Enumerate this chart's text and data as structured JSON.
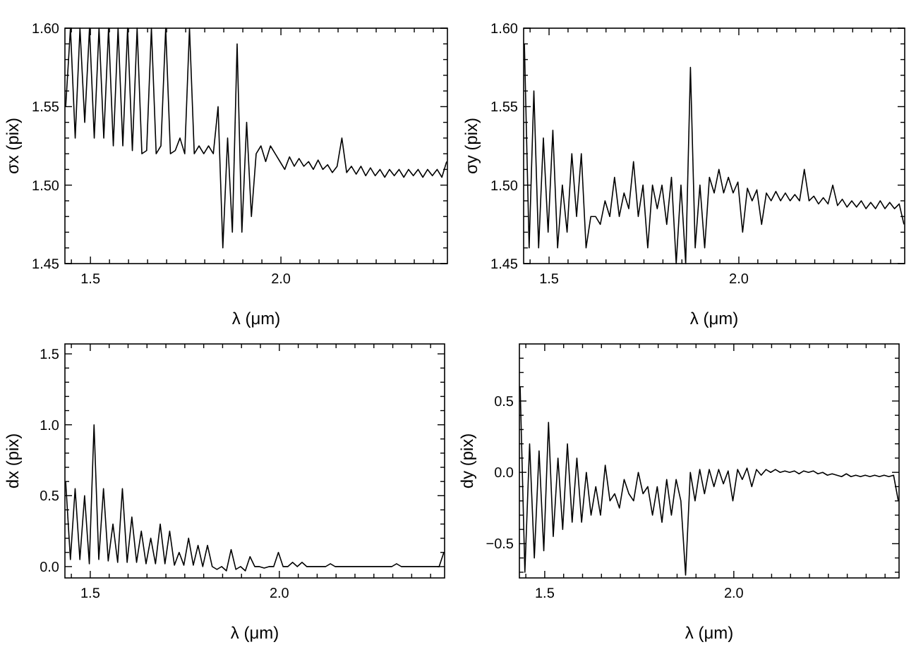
{
  "chart_data": [
    {
      "type": "line",
      "xlabel": "λ (μm)",
      "ylabel": "σx (pix)",
      "xlim": [
        1.433,
        2.437
      ],
      "ylim": [
        1.45,
        1.6
      ],
      "xticks": [
        {
          "value": 1.45,
          "label": null
        },
        {
          "value": 1.5,
          "label": "1.5"
        },
        {
          "value": 1.55,
          "label": null
        },
        {
          "value": 1.6,
          "label": null
        },
        {
          "value": 1.65,
          "label": null
        },
        {
          "value": 1.7,
          "label": null
        },
        {
          "value": 1.75,
          "label": null
        },
        {
          "value": 1.8,
          "label": null
        },
        {
          "value": 1.85,
          "label": null
        },
        {
          "value": 1.9,
          "label": null
        },
        {
          "value": 1.95,
          "label": null
        },
        {
          "value": 2.0,
          "label": "2.0"
        },
        {
          "value": 2.05,
          "label": null
        },
        {
          "value": 2.1,
          "label": null
        },
        {
          "value": 2.15,
          "label": null
        },
        {
          "value": 2.2,
          "label": null
        },
        {
          "value": 2.25,
          "label": null
        },
        {
          "value": 2.3,
          "label": null
        },
        {
          "value": 2.35,
          "label": null
        },
        {
          "value": 2.4,
          "label": null
        }
      ],
      "yticks": [
        {
          "value": 1.45,
          "label": "1.45"
        },
        {
          "value": 1.46,
          "label": null
        },
        {
          "value": 1.47,
          "label": null
        },
        {
          "value": 1.48,
          "label": null
        },
        {
          "value": 1.49,
          "label": null
        },
        {
          "value": 1.5,
          "label": "1.50"
        },
        {
          "value": 1.51,
          "label": null
        },
        {
          "value": 1.52,
          "label": null
        },
        {
          "value": 1.53,
          "label": null
        },
        {
          "value": 1.54,
          "label": null
        },
        {
          "value": 1.55,
          "label": "1.55"
        },
        {
          "value": 1.56,
          "label": null
        },
        {
          "value": 1.57,
          "label": null
        },
        {
          "value": 1.58,
          "label": null
        },
        {
          "value": 1.59,
          "label": null
        },
        {
          "value": 1.6,
          "label": "1.60"
        }
      ],
      "x": [
        1.435,
        1.4475,
        1.46,
        1.4725,
        1.485,
        1.4975,
        1.51,
        1.5225,
        1.535,
        1.5475,
        1.56,
        1.5725,
        1.585,
        1.5975,
        1.61,
        1.6225,
        1.635,
        1.6475,
        1.66,
        1.6725,
        1.685,
        1.6975,
        1.71,
        1.7225,
        1.735,
        1.7475,
        1.76,
        1.7725,
        1.785,
        1.7975,
        1.81,
        1.8225,
        1.835,
        1.8475,
        1.86,
        1.8725,
        1.885,
        1.8975,
        1.91,
        1.9225,
        1.935,
        1.9475,
        1.96,
        1.9725,
        1.985,
        1.9975,
        2.01,
        2.0225,
        2.035,
        2.0475,
        2.06,
        2.0725,
        2.085,
        2.0975,
        2.11,
        2.1225,
        2.135,
        2.1475,
        2.16,
        2.1725,
        2.185,
        2.1975,
        2.21,
        2.2225,
        2.235,
        2.2475,
        2.26,
        2.2725,
        2.285,
        2.2975,
        2.31,
        2.3225,
        2.335,
        2.3475,
        2.36,
        2.3725,
        2.385,
        2.3975,
        2.41,
        2.4225,
        2.435
      ],
      "series": [
        {
          "color": "#000000",
          "values": [
            1.55,
            1.6,
            1.53,
            1.6,
            1.54,
            1.6,
            1.53,
            1.6,
            1.53,
            1.6,
            1.525,
            1.6,
            1.525,
            1.6,
            1.522,
            1.6,
            1.52,
            1.522,
            1.6,
            1.52,
            1.525,
            1.6,
            1.52,
            1.522,
            1.53,
            1.52,
            1.6,
            1.52,
            1.525,
            1.52,
            1.525,
            1.52,
            1.55,
            1.46,
            1.53,
            1.47,
            1.59,
            1.47,
            1.54,
            1.48,
            1.52,
            1.525,
            1.515,
            1.525,
            1.52,
            1.515,
            1.51,
            1.518,
            1.512,
            1.517,
            1.512,
            1.515,
            1.51,
            1.516,
            1.51,
            1.513,
            1.508,
            1.512,
            1.53,
            1.508,
            1.512,
            1.507,
            1.512,
            1.506,
            1.511,
            1.506,
            1.51,
            1.505,
            1.51,
            1.506,
            1.51,
            1.505,
            1.51,
            1.506,
            1.51,
            1.505,
            1.51,
            1.506,
            1.51,
            1.505,
            1.515
          ]
        }
      ]
    },
    {
      "type": "line",
      "xlabel": "λ (μm)",
      "ylabel": "σy (pix)",
      "xlim": [
        1.433,
        2.437
      ],
      "ylim": [
        1.45,
        1.6
      ],
      "xticks": [
        {
          "value": 1.45,
          "label": null
        },
        {
          "value": 1.5,
          "label": "1.5"
        },
        {
          "value": 1.55,
          "label": null
        },
        {
          "value": 1.6,
          "label": null
        },
        {
          "value": 1.65,
          "label": null
        },
        {
          "value": 1.7,
          "label": null
        },
        {
          "value": 1.75,
          "label": null
        },
        {
          "value": 1.8,
          "label": null
        },
        {
          "value": 1.85,
          "label": null
        },
        {
          "value": 1.9,
          "label": null
        },
        {
          "value": 1.95,
          "label": null
        },
        {
          "value": 2.0,
          "label": "2.0"
        },
        {
          "value": 2.05,
          "label": null
        },
        {
          "value": 2.1,
          "label": null
        },
        {
          "value": 2.15,
          "label": null
        },
        {
          "value": 2.2,
          "label": null
        },
        {
          "value": 2.25,
          "label": null
        },
        {
          "value": 2.3,
          "label": null
        },
        {
          "value": 2.35,
          "label": null
        },
        {
          "value": 2.4,
          "label": null
        }
      ],
      "yticks": [
        {
          "value": 1.45,
          "label": "1.45"
        },
        {
          "value": 1.46,
          "label": null
        },
        {
          "value": 1.47,
          "label": null
        },
        {
          "value": 1.48,
          "label": null
        },
        {
          "value": 1.49,
          "label": null
        },
        {
          "value": 1.5,
          "label": "1.50"
        },
        {
          "value": 1.51,
          "label": null
        },
        {
          "value": 1.52,
          "label": null
        },
        {
          "value": 1.53,
          "label": null
        },
        {
          "value": 1.54,
          "label": null
        },
        {
          "value": 1.55,
          "label": "1.55"
        },
        {
          "value": 1.56,
          "label": null
        },
        {
          "value": 1.57,
          "label": null
        },
        {
          "value": 1.58,
          "label": null
        },
        {
          "value": 1.59,
          "label": null
        },
        {
          "value": 1.6,
          "label": "1.60"
        }
      ],
      "x": [
        1.435,
        1.4475,
        1.46,
        1.4725,
        1.485,
        1.4975,
        1.51,
        1.5225,
        1.535,
        1.5475,
        1.56,
        1.5725,
        1.585,
        1.5975,
        1.61,
        1.6225,
        1.635,
        1.6475,
        1.66,
        1.6725,
        1.685,
        1.6975,
        1.71,
        1.7225,
        1.735,
        1.7475,
        1.76,
        1.7725,
        1.785,
        1.7975,
        1.81,
        1.8225,
        1.835,
        1.8475,
        1.86,
        1.8725,
        1.885,
        1.8975,
        1.91,
        1.9225,
        1.935,
        1.9475,
        1.96,
        1.9725,
        1.985,
        1.9975,
        2.01,
        2.0225,
        2.035,
        2.0475,
        2.06,
        2.0725,
        2.085,
        2.0975,
        2.11,
        2.1225,
        2.135,
        2.1475,
        2.16,
        2.1725,
        2.185,
        2.1975,
        2.21,
        2.2225,
        2.235,
        2.2475,
        2.26,
        2.2725,
        2.285,
        2.2975,
        2.31,
        2.3225,
        2.335,
        2.3475,
        2.36,
        2.3725,
        2.385,
        2.3975,
        2.41,
        2.4225,
        2.435
      ],
      "series": [
        {
          "color": "#000000",
          "values": [
            1.59,
            1.46,
            1.56,
            1.46,
            1.53,
            1.47,
            1.535,
            1.46,
            1.5,
            1.47,
            1.52,
            1.48,
            1.52,
            1.46,
            1.48,
            1.48,
            1.475,
            1.49,
            1.48,
            1.505,
            1.48,
            1.495,
            1.485,
            1.515,
            1.48,
            1.5,
            1.46,
            1.5,
            1.485,
            1.5,
            1.475,
            1.505,
            1.45,
            1.5,
            1.45,
            1.575,
            1.46,
            1.5,
            1.46,
            1.505,
            1.495,
            1.51,
            1.495,
            1.505,
            1.495,
            1.502,
            1.47,
            1.498,
            1.49,
            1.497,
            1.475,
            1.495,
            1.49,
            1.496,
            1.49,
            1.495,
            1.49,
            1.494,
            1.49,
            1.51,
            1.49,
            1.493,
            1.488,
            1.492,
            1.488,
            1.5,
            1.487,
            1.491,
            1.486,
            1.49,
            1.486,
            1.49,
            1.485,
            1.489,
            1.485,
            1.49,
            1.485,
            1.489,
            1.485,
            1.488,
            1.475
          ]
        }
      ]
    },
    {
      "type": "line",
      "xlabel": "λ (μm)",
      "ylabel": "dx (pix)",
      "xlim": [
        1.433,
        2.437
      ],
      "ylim": [
        -0.08,
        1.57
      ],
      "xticks": [
        {
          "value": 1.45,
          "label": null
        },
        {
          "value": 1.5,
          "label": "1.5"
        },
        {
          "value": 1.55,
          "label": null
        },
        {
          "value": 1.6,
          "label": null
        },
        {
          "value": 1.65,
          "label": null
        },
        {
          "value": 1.7,
          "label": null
        },
        {
          "value": 1.75,
          "label": null
        },
        {
          "value": 1.8,
          "label": null
        },
        {
          "value": 1.85,
          "label": null
        },
        {
          "value": 1.9,
          "label": null
        },
        {
          "value": 1.95,
          "label": null
        },
        {
          "value": 2.0,
          "label": "2.0"
        },
        {
          "value": 2.05,
          "label": null
        },
        {
          "value": 2.1,
          "label": null
        },
        {
          "value": 2.15,
          "label": null
        },
        {
          "value": 2.2,
          "label": null
        },
        {
          "value": 2.25,
          "label": null
        },
        {
          "value": 2.3,
          "label": null
        },
        {
          "value": 2.35,
          "label": null
        },
        {
          "value": 2.4,
          "label": null
        }
      ],
      "yticks": [
        {
          "value": 0,
          "label": "0.0"
        },
        {
          "value": 0.1,
          "label": null
        },
        {
          "value": 0.2,
          "label": null
        },
        {
          "value": 0.3,
          "label": null
        },
        {
          "value": 0.4,
          "label": null
        },
        {
          "value": 0.5,
          "label": "0.5"
        },
        {
          "value": 0.6,
          "label": null
        },
        {
          "value": 0.7,
          "label": null
        },
        {
          "value": 0.8,
          "label": null
        },
        {
          "value": 0.9,
          "label": null
        },
        {
          "value": 1,
          "label": "1.0"
        },
        {
          "value": 1.1,
          "label": null
        },
        {
          "value": 1.2,
          "label": null
        },
        {
          "value": 1.3,
          "label": null
        },
        {
          "value": 1.4,
          "label": null
        },
        {
          "value": 1.5,
          "label": "1.5"
        }
      ],
      "x": [
        1.435,
        1.4475,
        1.46,
        1.4725,
        1.485,
        1.4975,
        1.51,
        1.5225,
        1.535,
        1.5475,
        1.56,
        1.5725,
        1.585,
        1.5975,
        1.61,
        1.6225,
        1.635,
        1.6475,
        1.66,
        1.6725,
        1.685,
        1.6975,
        1.71,
        1.7225,
        1.735,
        1.7475,
        1.76,
        1.7725,
        1.785,
        1.7975,
        1.81,
        1.8225,
        1.835,
        1.8475,
        1.86,
        1.8725,
        1.885,
        1.8975,
        1.91,
        1.9225,
        1.935,
        1.9475,
        1.96,
        1.9725,
        1.985,
        1.9975,
        2.01,
        2.0225,
        2.035,
        2.0475,
        2.06,
        2.0725,
        2.085,
        2.0975,
        2.11,
        2.1225,
        2.135,
        2.1475,
        2.16,
        2.1725,
        2.185,
        2.1975,
        2.21,
        2.2225,
        2.235,
        2.2475,
        2.26,
        2.2725,
        2.285,
        2.2975,
        2.31,
        2.3225,
        2.335,
        2.3475,
        2.36,
        2.3725,
        2.385,
        2.3975,
        2.41,
        2.4225,
        2.435
      ],
      "series": [
        {
          "color": "#000000",
          "values": [
            0.6,
            0.05,
            0.55,
            0.05,
            0.5,
            0.02,
            1.0,
            0.05,
            0.55,
            0.04,
            0.3,
            0.03,
            0.55,
            0.03,
            0.35,
            0.03,
            0.25,
            0.02,
            0.2,
            0.02,
            0.3,
            0.02,
            0.25,
            0.01,
            0.1,
            0.01,
            0.2,
            0.01,
            0.15,
            0,
            0.15,
            0,
            -0.02,
            0,
            -0.03,
            0.12,
            -0.02,
            0,
            -0.03,
            0.07,
            0,
            0,
            -0.01,
            0,
            0,
            0.1,
            0,
            0,
            0.03,
            0,
            0.03,
            0,
            0,
            0,
            0,
            0,
            0.02,
            0,
            0,
            0,
            0,
            0,
            0,
            0,
            0,
            0,
            0,
            0,
            0,
            0,
            0.02,
            0,
            0,
            0,
            0,
            0,
            0,
            0,
            0,
            0,
            0.1
          ]
        }
      ]
    },
    {
      "type": "line",
      "xlabel": "λ (μm)",
      "ylabel": "dy (pix)",
      "xlim": [
        1.433,
        2.437
      ],
      "ylim": [
        -0.74,
        0.9
      ],
      "xticks": [
        {
          "value": 1.45,
          "label": null
        },
        {
          "value": 1.5,
          "label": "1.5"
        },
        {
          "value": 1.55,
          "label": null
        },
        {
          "value": 1.6,
          "label": null
        },
        {
          "value": 1.65,
          "label": null
        },
        {
          "value": 1.7,
          "label": null
        },
        {
          "value": 1.75,
          "label": null
        },
        {
          "value": 1.8,
          "label": null
        },
        {
          "value": 1.85,
          "label": null
        },
        {
          "value": 1.9,
          "label": null
        },
        {
          "value": 1.95,
          "label": null
        },
        {
          "value": 2.0,
          "label": "2.0"
        },
        {
          "value": 2.05,
          "label": null
        },
        {
          "value": 2.1,
          "label": null
        },
        {
          "value": 2.15,
          "label": null
        },
        {
          "value": 2.2,
          "label": null
        },
        {
          "value": 2.25,
          "label": null
        },
        {
          "value": 2.3,
          "label": null
        },
        {
          "value": 2.35,
          "label": null
        },
        {
          "value": 2.4,
          "label": null
        }
      ],
      "yticks": [
        {
          "value": -0.7,
          "label": null
        },
        {
          "value": -0.6,
          "label": null
        },
        {
          "value": -0.5,
          "label": "−0.5"
        },
        {
          "value": -0.4,
          "label": null
        },
        {
          "value": -0.3,
          "label": null
        },
        {
          "value": -0.2,
          "label": null
        },
        {
          "value": -0.1,
          "label": null
        },
        {
          "value": 0,
          "label": "0.0"
        },
        {
          "value": 0.1,
          "label": null
        },
        {
          "value": 0.2,
          "label": null
        },
        {
          "value": 0.3,
          "label": null
        },
        {
          "value": 0.4,
          "label": null
        },
        {
          "value": 0.5,
          "label": "0.5"
        },
        {
          "value": 0.6,
          "label": null
        },
        {
          "value": 0.7,
          "label": null
        },
        {
          "value": 0.8,
          "label": null
        }
      ],
      "x": [
        1.435,
        1.4475,
        1.46,
        1.4725,
        1.485,
        1.4975,
        1.51,
        1.5225,
        1.535,
        1.5475,
        1.56,
        1.5725,
        1.585,
        1.5975,
        1.61,
        1.6225,
        1.635,
        1.6475,
        1.66,
        1.6725,
        1.685,
        1.6975,
        1.71,
        1.7225,
        1.735,
        1.7475,
        1.76,
        1.7725,
        1.785,
        1.7975,
        1.81,
        1.8225,
        1.835,
        1.8475,
        1.86,
        1.8725,
        1.885,
        1.8975,
        1.91,
        1.9225,
        1.935,
        1.9475,
        1.96,
        1.9725,
        1.985,
        1.9975,
        2.01,
        2.0225,
        2.035,
        2.0475,
        2.06,
        2.0725,
        2.085,
        2.0975,
        2.11,
        2.1225,
        2.135,
        2.1475,
        2.16,
        2.1725,
        2.185,
        2.1975,
        2.21,
        2.2225,
        2.235,
        2.2475,
        2.26,
        2.2725,
        2.285,
        2.2975,
        2.31,
        2.3225,
        2.335,
        2.3475,
        2.36,
        2.3725,
        2.385,
        2.3975,
        2.41,
        2.4225,
        2.435
      ],
      "series": [
        {
          "color": "#000000",
          "values": [
            0.6,
            -0.7,
            0.2,
            -0.6,
            0.15,
            -0.55,
            0.35,
            -0.45,
            0.1,
            -0.4,
            0.2,
            -0.35,
            0.1,
            -0.35,
            0,
            -0.3,
            -0.1,
            -0.3,
            0.05,
            -0.2,
            -0.15,
            -0.25,
            -0.05,
            -0.15,
            -0.2,
            0,
            -0.15,
            -0.1,
            -0.3,
            -0.1,
            -0.35,
            -0.05,
            -0.3,
            -0.05,
            -0.2,
            -0.72,
            0,
            -0.2,
            0.02,
            -0.15,
            0.02,
            -0.1,
            0.02,
            -0.08,
            0.01,
            -0.2,
            0.02,
            -0.05,
            0.03,
            -0.1,
            0.02,
            -0.02,
            0.02,
            0,
            0.02,
            0,
            0.01,
            0,
            0.01,
            -0.01,
            0.01,
            0,
            0.01,
            -0.01,
            0,
            -0.02,
            -0.01,
            -0.02,
            -0.03,
            -0.01,
            -0.03,
            -0.02,
            -0.03,
            -0.02,
            -0.03,
            -0.02,
            -0.03,
            -0.02,
            -0.03,
            -0.02,
            -0.2
          ]
        }
      ]
    }
  ]
}
